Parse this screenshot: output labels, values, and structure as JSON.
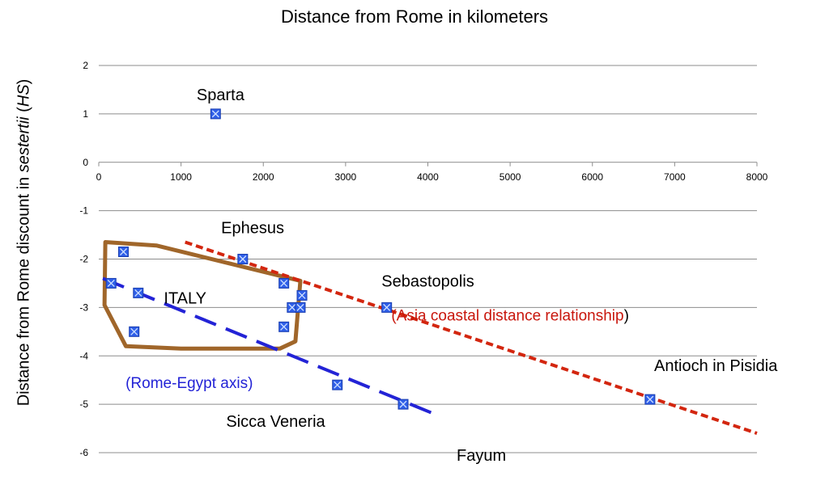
{
  "chart_data": {
    "type": "scatter",
    "title": "Distance from Rome in kilometers",
    "ylabel_parts": [
      "Distance from Rome discount in ",
      "sestertii",
      " (",
      "HS",
      ")"
    ],
    "xlim": [
      0,
      8000
    ],
    "ylim": [
      -6,
      2
    ],
    "x_ticks": [
      0,
      1000,
      2000,
      3000,
      4000,
      5000,
      6000,
      7000,
      8000
    ],
    "y_ticks": [
      2,
      1,
      0,
      -1,
      -2,
      -3,
      -4,
      -5,
      -6
    ],
    "grid": "horizontal",
    "marker_color": "#2f5fe8",
    "points": [
      {
        "x": 1420,
        "y": 1
      },
      {
        "x": 1750,
        "y": -2
      },
      {
        "x": 300,
        "y": -1.85
      },
      {
        "x": 150,
        "y": -2.5
      },
      {
        "x": 480,
        "y": -2.7
      },
      {
        "x": 430,
        "y": -3.5
      },
      {
        "x": 2250,
        "y": -2.5
      },
      {
        "x": 2470,
        "y": -2.75
      },
      {
        "x": 2350,
        "y": -3
      },
      {
        "x": 2450,
        "y": -3
      },
      {
        "x": 2250,
        "y": -3.4
      },
      {
        "x": 3500,
        "y": -3
      },
      {
        "x": 2900,
        "y": -4.6
      },
      {
        "x": 3700,
        "y": -5
      },
      {
        "x": 6700,
        "y": -4.9
      }
    ],
    "point_labels": [
      {
        "text": "Sparta",
        "x": 1480,
        "y": 1.4
      },
      {
        "text": "Ephesus",
        "x": 1870,
        "y": -1.35
      },
      {
        "text": "Sebastopolis",
        "x": 4000,
        "y": -2.45
      },
      {
        "text": "ITALY",
        "x": 1050,
        "y": -2.8
      },
      {
        "text": "Antioch in Pisidia",
        "x": 7500,
        "y": -4.2
      },
      {
        "text": "Sicca Veneria",
        "x": 2150,
        "y": -5.35
      },
      {
        "text": "Fayum",
        "x": 4650,
        "y": -6.05
      }
    ],
    "annotations": [
      {
        "text": "(Rome-Egypt axis)",
        "x": 1100,
        "y": -4.55,
        "color": "#2323d6"
      },
      {
        "text": "(Asia coastal distance relationship",
        "closing": ")",
        "x": 5000,
        "y": -3.15,
        "color": "#c8160c"
      }
    ],
    "trendlines": [
      {
        "name": "Rome-Egypt axis",
        "x": [
          50,
          4150
        ],
        "y": [
          -2.4,
          -5.25
        ],
        "color": "#2323d6",
        "style": "long-dash"
      },
      {
        "name": "Asia coastal distance relationship",
        "x": [
          1050,
          8000
        ],
        "y": [
          -1.65,
          -5.6
        ],
        "color": "#d3260f",
        "style": "short-dash"
      }
    ],
    "region": {
      "label": "ITALY",
      "color": "#a0662a",
      "polygon": [
        [
          80,
          -1.65
        ],
        [
          700,
          -1.72
        ],
        [
          2450,
          -2.45
        ],
        [
          2390,
          -3.7
        ],
        [
          2200,
          -3.85
        ],
        [
          1000,
          -3.85
        ],
        [
          330,
          -3.8
        ],
        [
          70,
          -2.95
        ]
      ]
    }
  }
}
